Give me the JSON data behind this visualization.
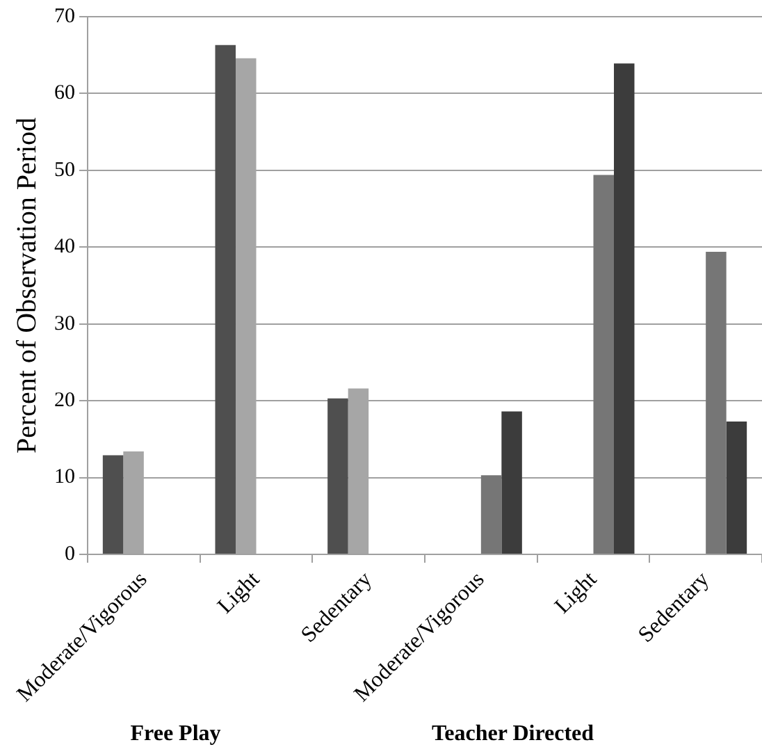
{
  "chart_data": {
    "type": "bar",
    "ylabel": "Percent of Observation Period",
    "categories": [
      "Moderate/Vigorous",
      "Light",
      "Sedentary",
      "Moderate/Vigorous",
      "Light",
      "Sedentary"
    ],
    "series": [
      {
        "color": "#4f4f4f",
        "values": [
          12.9,
          66.3,
          20.3,
          null,
          null,
          null
        ]
      },
      {
        "color": "#a6a6a6",
        "values": [
          13.4,
          64.6,
          21.6,
          null,
          null,
          null
        ]
      },
      {
        "color": "#767676",
        "values": [
          null,
          null,
          null,
          10.3,
          49.4,
          39.4
        ]
      },
      {
        "color": "#3c3c3c",
        "values": [
          null,
          null,
          null,
          18.6,
          63.9,
          17.3
        ]
      }
    ],
    "ylim": [
      0,
      70
    ],
    "yticks": [
      0,
      10,
      20,
      30,
      40,
      50,
      60,
      70
    ],
    "grid": "y",
    "legend": false,
    "annotations": [
      "Free Play",
      "Teacher Directed"
    ]
  }
}
